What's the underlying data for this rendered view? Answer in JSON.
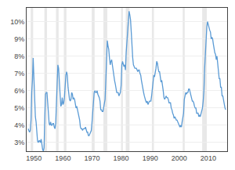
{
  "chart_data": {
    "type": "line",
    "x": [
      1948,
      1948.25,
      1948.5,
      1948.75,
      1949,
      1949.25,
      1949.5,
      1949.75,
      1950,
      1950.25,
      1950.5,
      1950.75,
      1951,
      1951.25,
      1951.5,
      1951.75,
      1952,
      1952.25,
      1952.5,
      1952.75,
      1953,
      1953.25,
      1953.5,
      1953.75,
      1954,
      1954.25,
      1954.5,
      1954.75,
      1955,
      1955.25,
      1955.5,
      1955.75,
      1956,
      1956.25,
      1956.5,
      1956.75,
      1957,
      1957.25,
      1957.5,
      1957.75,
      1958,
      1958.25,
      1958.5,
      1958.75,
      1959,
      1959.25,
      1959.5,
      1959.75,
      1960,
      1960.25,
      1960.5,
      1960.75,
      1961,
      1961.25,
      1961.5,
      1961.75,
      1962,
      1962.25,
      1962.5,
      1962.75,
      1963,
      1963.25,
      1963.5,
      1963.75,
      1964,
      1964.25,
      1964.5,
      1964.75,
      1965,
      1965.25,
      1965.5,
      1965.75,
      1966,
      1966.25,
      1966.5,
      1966.75,
      1967,
      1967.25,
      1967.5,
      1967.75,
      1968,
      1968.25,
      1968.5,
      1968.75,
      1969,
      1969.25,
      1969.5,
      1969.75,
      1970,
      1970.25,
      1970.5,
      1970.75,
      1971,
      1971.25,
      1971.5,
      1971.75,
      1972,
      1972.25,
      1972.5,
      1972.75,
      1973,
      1973.25,
      1973.5,
      1973.75,
      1974,
      1974.25,
      1974.5,
      1974.75,
      1975,
      1975.25,
      1975.5,
      1975.75,
      1976,
      1976.25,
      1976.5,
      1976.75,
      1977,
      1977.25,
      1977.5,
      1977.75,
      1978,
      1978.25,
      1978.5,
      1978.75,
      1979,
      1979.25,
      1979.5,
      1979.75,
      1980,
      1980.25,
      1980.5,
      1980.75,
      1981,
      1981.25,
      1981.5,
      1981.75,
      1982,
      1982.25,
      1982.5,
      1982.75,
      1983,
      1983.25,
      1983.5,
      1983.75,
      1984,
      1984.25,
      1984.5,
      1984.75,
      1985,
      1985.25,
      1985.5,
      1985.75,
      1986,
      1986.25,
      1986.5,
      1986.75,
      1987,
      1987.25,
      1987.5,
      1987.75,
      1988,
      1988.25,
      1988.5,
      1988.75,
      1989,
      1989.25,
      1989.5,
      1989.75,
      1990,
      1990.25,
      1990.5,
      1990.75,
      1991,
      1991.25,
      1991.5,
      1991.75,
      1992,
      1992.25,
      1992.5,
      1992.75,
      1993,
      1993.25,
      1993.5,
      1993.75,
      1994,
      1994.25,
      1994.5,
      1994.75,
      1995,
      1995.25,
      1995.5,
      1995.75,
      1996,
      1996.25,
      1996.5,
      1996.75,
      1997,
      1997.25,
      1997.5,
      1997.75,
      1998,
      1998.25,
      1998.5,
      1998.75,
      1999,
      1999.25,
      1999.5,
      1999.75,
      2000,
      2000.25,
      2000.5,
      2000.75,
      2001,
      2001.25,
      2001.5,
      2001.75,
      2002,
      2002.25,
      2002.5,
      2002.75,
      2003,
      2003.25,
      2003.5,
      2003.75,
      2004,
      2004.25,
      2004.5,
      2004.75,
      2005,
      2005.25,
      2005.5,
      2005.75,
      2006,
      2006.25,
      2006.5,
      2006.75,
      2007,
      2007.25,
      2007.5,
      2007.75,
      2008,
      2008.25,
      2008.5,
      2008.75,
      2009,
      2009.25,
      2009.5,
      2009.75,
      2010,
      2010.25,
      2010.5,
      2010.75,
      2011,
      2011.25,
      2011.5,
      2011.75,
      2012,
      2012.25,
      2012.5,
      2012.75,
      2013,
      2013.25,
      2013.5,
      2013.75,
      2014,
      2014.25,
      2014.5,
      2014.75,
      2015,
      2015.25,
      2015.5,
      2015.75,
      2016
    ],
    "values": [
      3.8,
      3.7,
      3.6,
      3.7,
      4.3,
      5.9,
      6.6,
      7.9,
      6.5,
      5.8,
      4.5,
      4.2,
      3.5,
      3.1,
      3.0,
      3.1,
      3.1,
      3.0,
      3.2,
      2.8,
      2.6,
      2.5,
      2.7,
      4.5,
      5.8,
      5.9,
      5.9,
      5.3,
      4.7,
      4.1,
      4.0,
      4.2,
      4.0,
      4.0,
      4.1,
      4.1,
      3.9,
      3.8,
      4.1,
      5.1,
      6.3,
      7.5,
      7.3,
      6.4,
      5.8,
      5.1,
      5.2,
      5.6,
      5.2,
      5.3,
      5.6,
      6.5,
      6.9,
      7.1,
      6.9,
      6.2,
      5.7,
      5.5,
      5.4,
      5.5,
      5.9,
      5.8,
      5.5,
      5.6,
      5.5,
      5.2,
      5.0,
      5.1,
      4.9,
      4.7,
      4.5,
      4.3,
      3.9,
      3.8,
      3.8,
      3.7,
      3.8,
      3.8,
      3.8,
      3.9,
      3.7,
      3.6,
      3.6,
      3.4,
      3.4,
      3.5,
      3.6,
      3.7,
      4.2,
      4.8,
      5.1,
      5.9,
      6.0,
      5.9,
      5.9,
      6.0,
      5.8,
      5.7,
      5.6,
      5.4,
      4.9,
      4.9,
      4.8,
      4.8,
      5.1,
      5.2,
      5.5,
      6.6,
      8.1,
      8.9,
      8.6,
      8.4,
      7.9,
      7.5,
      7.7,
      7.8,
      7.5,
      7.1,
      6.9,
      6.6,
      6.4,
      6.0,
      5.9,
      5.9,
      5.9,
      5.7,
      5.8,
      5.9,
      6.3,
      7.5,
      7.7,
      7.5,
      7.4,
      7.5,
      7.2,
      8.2,
      8.9,
      9.5,
      9.8,
      10.6,
      10.4,
      10.1,
      9.4,
      8.5,
      7.9,
      7.5,
      7.4,
      7.3,
      7.3,
      7.3,
      7.2,
      7.1,
      7.2,
      7.2,
      7.0,
      6.9,
      6.6,
      6.3,
      6.0,
      5.9,
      5.7,
      5.5,
      5.4,
      5.3,
      5.4,
      5.2,
      5.3,
      5.4,
      5.4,
      5.4,
      5.7,
      6.2,
      6.6,
      6.9,
      6.8,
      7.0,
      7.3,
      7.7,
      7.6,
      7.3,
      7.1,
      7.1,
      6.8,
      6.5,
      6.6,
      6.1,
      6.0,
      5.6,
      5.5,
      5.6,
      5.7,
      5.6,
      5.6,
      5.5,
      5.3,
      5.3,
      5.3,
      5.0,
      4.9,
      4.7,
      4.6,
      4.4,
      4.5,
      4.4,
      4.3,
      4.3,
      4.2,
      4.1,
      4.0,
      3.9,
      4.0,
      3.9,
      4.2,
      4.5,
      4.7,
      5.5,
      5.7,
      5.9,
      5.8,
      5.9,
      5.9,
      6.1,
      6.1,
      5.9,
      5.7,
      5.6,
      5.4,
      5.4,
      5.3,
      5.1,
      5.0,
      5.0,
      4.7,
      4.7,
      4.7,
      4.5,
      4.6,
      4.5,
      4.7,
      4.9,
      5.0,
      5.4,
      6.0,
      7.3,
      8.3,
      9.3,
      9.7,
      10.0,
      9.8,
      9.7,
      9.5,
      9.4,
      9.0,
      9.1,
      9.0,
      8.7,
      8.3,
      8.2,
      8.1,
      7.8,
      8.0,
      7.6,
      7.3,
      6.7,
      6.7,
      6.2,
      6.2,
      5.7,
      5.7,
      5.4,
      5.3,
      5.0,
      4.9
    ],
    "color": "#5b9bd5",
    "recession_bands": [
      [
        1948.9,
        1949.75
      ],
      [
        1953.6,
        1954.5
      ],
      [
        1957.6,
        1958.5
      ],
      [
        1960.3,
        1961.2
      ],
      [
        1969.9,
        1970.9
      ],
      [
        1973.9,
        1975.25
      ],
      [
        1980.0,
        1980.6
      ],
      [
        1981.6,
        1982.9
      ],
      [
        1990.6,
        1991.3
      ],
      [
        2001.2,
        2001.9
      ],
      [
        2007.9,
        2009.5
      ]
    ],
    "recession_color": "#e8e8e8",
    "xlim": [
      1947.5,
      2016.5
    ],
    "xticks": [
      1950,
      1960,
      1970,
      1980,
      1990,
      2000,
      2010
    ],
    "ylim": [
      2.5,
      10.8
    ],
    "yticks": [
      {
        "value": 3,
        "label": "3%"
      },
      {
        "value": 4,
        "label": "4%"
      },
      {
        "value": 5,
        "label": "5%"
      },
      {
        "value": 6,
        "label": "6%"
      },
      {
        "value": 7,
        "label": "7%"
      },
      {
        "value": 8,
        "label": "8%"
      },
      {
        "value": 9,
        "label": "9%"
      },
      {
        "value": 10,
        "label": "10%"
      }
    ],
    "grid": "y"
  }
}
